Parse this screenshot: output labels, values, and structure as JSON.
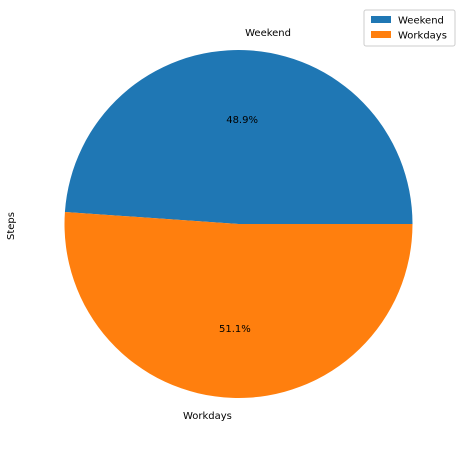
{
  "chart_data": {
    "type": "pie",
    "title": "",
    "ylabel": "Steps",
    "categories": [
      "Weekend",
      "Workdays"
    ],
    "values": [
      48.9,
      51.1
    ],
    "percent_labels": [
      "48.9%",
      "51.1%"
    ],
    "colors": [
      "#1f77b4",
      "#ff7f0e"
    ],
    "legend": {
      "placement": "upper-right",
      "entries": [
        "Weekend",
        "Workdays"
      ]
    }
  }
}
